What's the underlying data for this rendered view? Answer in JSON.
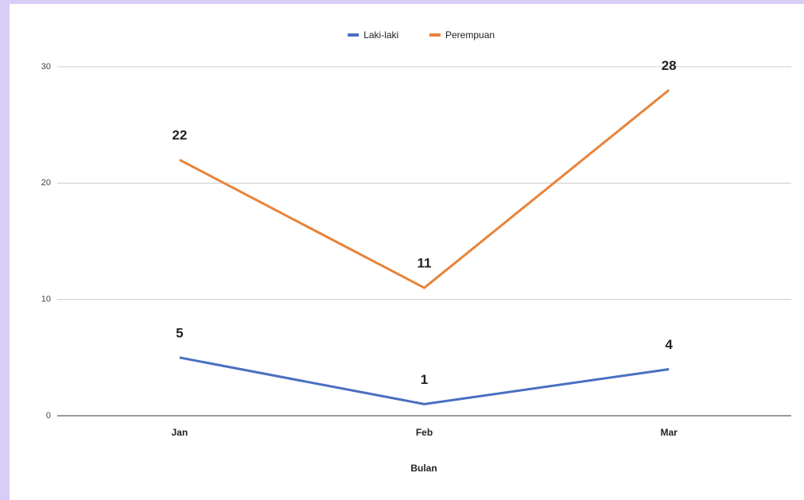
{
  "chart_data": {
    "type": "line",
    "x_label": "Bulan",
    "categories": [
      "Jan",
      "Feb",
      "Mar"
    ],
    "series": [
      {
        "name": "Laki-laki",
        "color": "#4a6fc1",
        "values": [
          5,
          1,
          4
        ]
      },
      {
        "name": "Perempuan",
        "color": "#e8833a",
        "values": [
          22,
          11,
          28
        ]
      }
    ],
    "ylim": [
      0,
      30
    ],
    "yticks": [
      0,
      10,
      20,
      30
    ],
    "grid": true,
    "legend": "top"
  }
}
